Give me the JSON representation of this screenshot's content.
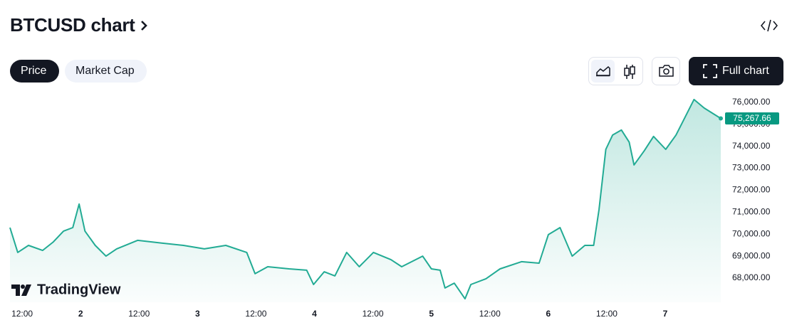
{
  "header": {
    "title": "BTCUSD chart"
  },
  "tabs": [
    "Price",
    "Market Cap"
  ],
  "full_chart_button": "Full chart",
  "logo": "TradingView",
  "chart_data": {
    "type": "area",
    "series": [
      {
        "name": "BTCUSD",
        "color": "#22ab94",
        "x": [
          9.5,
          11.1,
          13.3,
          16.2,
          18.4,
          20.5,
          22.4,
          23.7,
          24.9,
          27.0,
          29.2,
          31.4,
          35.7,
          40.8,
          45.1,
          49.4,
          53.8,
          58.1,
          59.8,
          62.4,
          66.8,
          70.4,
          71.8,
          74.0,
          76.2,
          78.6,
          81.2,
          84.1,
          87.7,
          89.9,
          94.2,
          96.0,
          97.8,
          98.8,
          100.7,
          102.9,
          104.1,
          107.2,
          110.1,
          114.5,
          118.1,
          120.0,
          122.4,
          124.9,
          127.5,
          129.3,
          130.4,
          131.8,
          133.2,
          135.0,
          136.6,
          137.6,
          139.7,
          141.6,
          144.1,
          146.2,
          147.7,
          149.9,
          152.0,
          155.4
        ],
        "values": [
          70300,
          69170,
          69490,
          69260,
          69650,
          70140,
          70300,
          71370,
          70140,
          69490,
          69000,
          69330,
          69720,
          69590,
          69490,
          69330,
          69490,
          69170,
          68200,
          68520,
          68420,
          68360,
          67710,
          68290,
          68100,
          69170,
          68520,
          69170,
          68840,
          68520,
          69000,
          68420,
          68360,
          67550,
          67770,
          67060,
          67710,
          67970,
          68420,
          68750,
          68680,
          69980,
          70300,
          69000,
          69490,
          69490,
          71110,
          73860,
          74510,
          74740,
          74190,
          73150,
          73800,
          74450,
          73860,
          74510,
          75160,
          76130,
          75740,
          75267.66
        ]
      }
    ],
    "xlim": [
      9.5,
      155.4
    ],
    "xticks": [
      {
        "value": 12,
        "label": "12:00"
      },
      {
        "value": 24,
        "label": "2"
      },
      {
        "value": 36,
        "label": "12:00"
      },
      {
        "value": 48,
        "label": "3"
      },
      {
        "value": 60,
        "label": "12:00"
      },
      {
        "value": 72,
        "label": "4"
      },
      {
        "value": 84,
        "label": "12:00"
      },
      {
        "value": 96,
        "label": "5"
      },
      {
        "value": 108,
        "label": "12:00"
      },
      {
        "value": 120,
        "label": "6"
      },
      {
        "value": 132,
        "label": "12:00"
      },
      {
        "value": 144,
        "label": "7"
      }
    ],
    "ylim": [
      66900,
      76450
    ],
    "yticks": [
      {
        "value": 68000,
        "label": "68,000.00"
      },
      {
        "value": 69000,
        "label": "69,000.00"
      },
      {
        "value": 70000,
        "label": "70,000.00"
      },
      {
        "value": 71000,
        "label": "71,000.00"
      },
      {
        "value": 72000,
        "label": "72,000.00"
      },
      {
        "value": 73000,
        "label": "73,000.00"
      },
      {
        "value": 74000,
        "label": "74,000.00"
      },
      {
        "value": 75000,
        "label": "75,000.00"
      },
      {
        "value": 76000,
        "label": "76,000.00"
      }
    ],
    "price_tag": {
      "value": 75267.66,
      "label": "75,267.66"
    },
    "tag_color": "#089981"
  }
}
